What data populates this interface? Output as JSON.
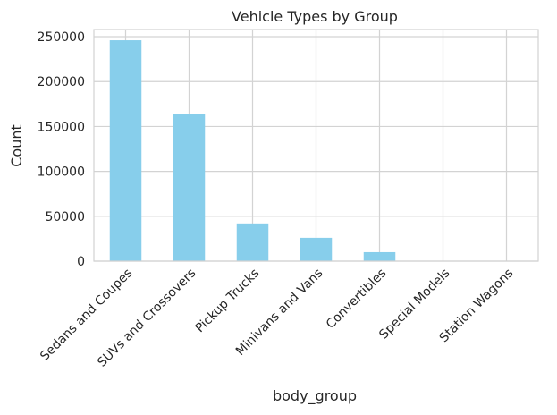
{
  "chart_data": {
    "type": "bar",
    "title": "Vehicle Types by Group",
    "xlabel": "body_group",
    "ylabel": "Count",
    "categories": [
      "Sedans and Coupes",
      "SUVs and Crossovers",
      "Pickup Trucks",
      "Minivans and Vans",
      "Convertibles",
      "Special Models",
      "Station Wagons"
    ],
    "values": [
      246000,
      163500,
      42000,
      26000,
      10000,
      500,
      200
    ],
    "ylim": [
      0,
      258000
    ],
    "yticks": [
      0,
      50000,
      100000,
      150000,
      200000,
      250000
    ],
    "ytick_labels": [
      "0",
      "50000",
      "100000",
      "150000",
      "200000",
      "250000"
    ],
    "grid": true,
    "bar_color": "#87CEEB",
    "grid_color": "#d3d3d3"
  }
}
